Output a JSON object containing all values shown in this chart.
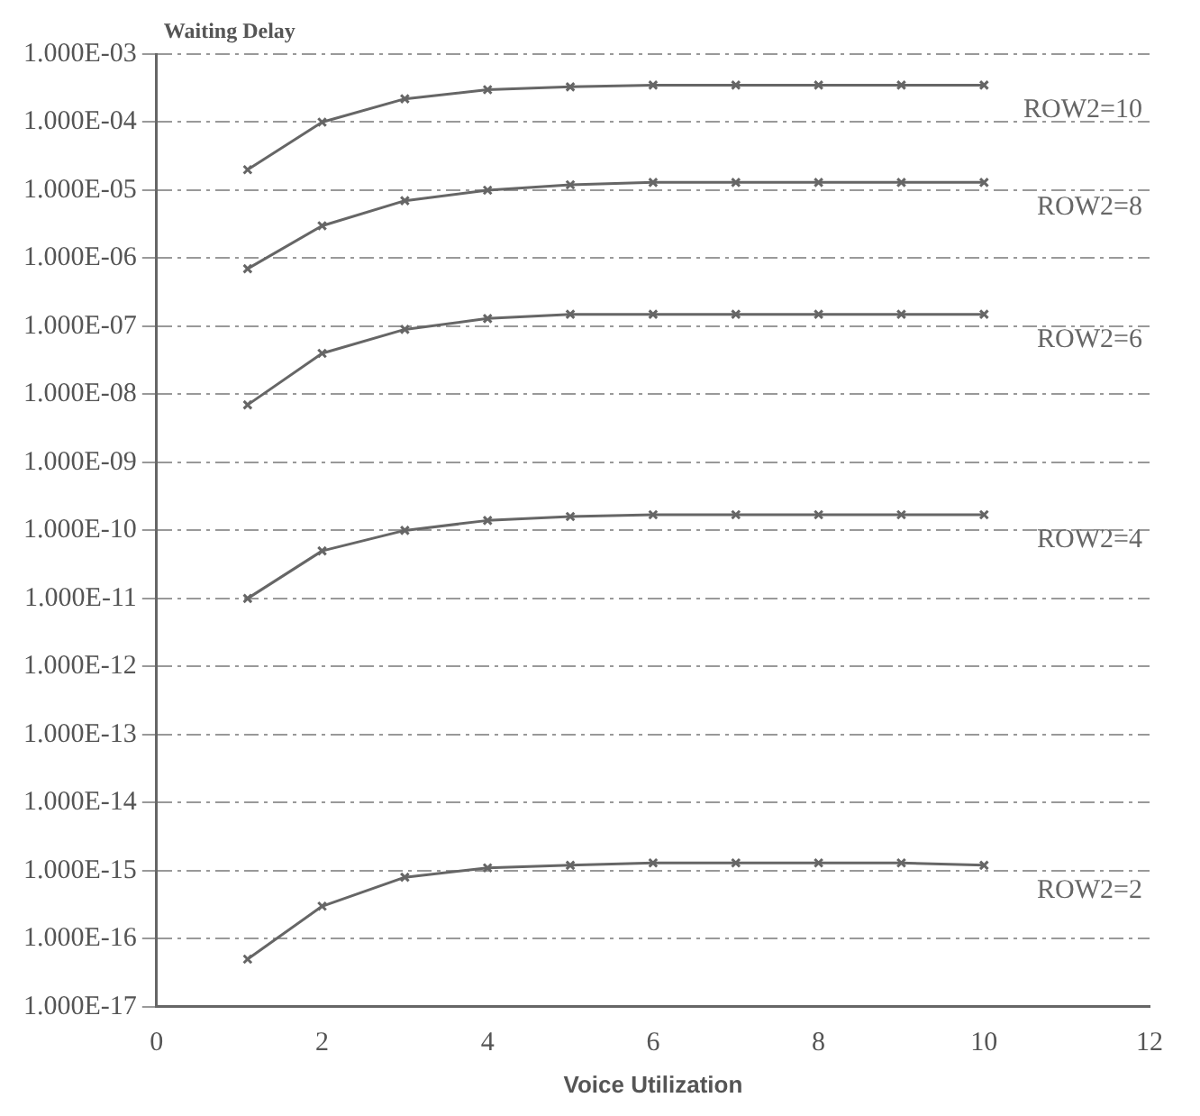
{
  "chart_data": {
    "type": "line",
    "ylabel": "Waiting Delay",
    "xlabel": "Voice Utilization",
    "xlim": [
      0,
      12
    ],
    "xticks": [
      0,
      2,
      4,
      6,
      8,
      10,
      12
    ],
    "ylim": [
      1e-17,
      0.001
    ],
    "log": "y",
    "yticks": [
      {
        "value": 0.001,
        "label": "1.000E-03"
      },
      {
        "value": 0.0001,
        "label": "1.000E-04"
      },
      {
        "value": 1e-05,
        "label": "1.000E-05"
      },
      {
        "value": 1e-06,
        "label": "1.000E-06"
      },
      {
        "value": 1e-07,
        "label": "1.000E-07"
      },
      {
        "value": 1e-08,
        "label": "1.000E-08"
      },
      {
        "value": 1e-09,
        "label": "1.000E-09"
      },
      {
        "value": 1e-10,
        "label": "1.000E-10"
      },
      {
        "value": 1e-11,
        "label": "1.000E-11"
      },
      {
        "value": 1e-12,
        "label": "1.000E-12"
      },
      {
        "value": 1e-13,
        "label": "1.000E-13"
      },
      {
        "value": 1e-14,
        "label": "1.000E-14"
      },
      {
        "value": 1e-15,
        "label": "1.000E-15"
      },
      {
        "value": 1e-16,
        "label": "1.000E-16"
      },
      {
        "value": 1e-17,
        "label": "1.000E-17"
      }
    ],
    "grid": "y",
    "legend": false,
    "marker": "cross",
    "x": [
      1.1,
      2,
      3,
      4,
      5,
      6,
      7,
      8,
      9,
      10
    ],
    "series": [
      {
        "name": "ROW2=10",
        "color": "#666666",
        "values": [
          2e-05,
          0.0001,
          0.00022,
          0.0003,
          0.00033,
          0.00035,
          0.00035,
          0.00035,
          0.00035,
          0.00035
        ]
      },
      {
        "name": "ROW2=8",
        "color": "#666666",
        "values": [
          7e-07,
          3e-06,
          7e-06,
          1e-05,
          1.2e-05,
          1.3e-05,
          1.3e-05,
          1.3e-05,
          1.3e-05,
          1.3e-05
        ]
      },
      {
        "name": "ROW2=6",
        "color": "#666666",
        "values": [
          7e-09,
          4e-08,
          9e-08,
          1.3e-07,
          1.5e-07,
          1.5e-07,
          1.5e-07,
          1.5e-07,
          1.5e-07,
          1.5e-07
        ]
      },
      {
        "name": "ROW2=4",
        "color": "#666666",
        "values": [
          1e-11,
          5e-11,
          1e-10,
          1.4e-10,
          1.6e-10,
          1.7e-10,
          1.7e-10,
          1.7e-10,
          1.7e-10,
          1.7e-10
        ]
      },
      {
        "name": "ROW2=2",
        "color": "#666666",
        "values": [
          5e-17,
          3e-16,
          8e-16,
          1.1e-15,
          1.2e-15,
          1.3e-15,
          1.3e-15,
          1.3e-15,
          1.3e-15,
          1.2e-15
        ]
      }
    ]
  }
}
